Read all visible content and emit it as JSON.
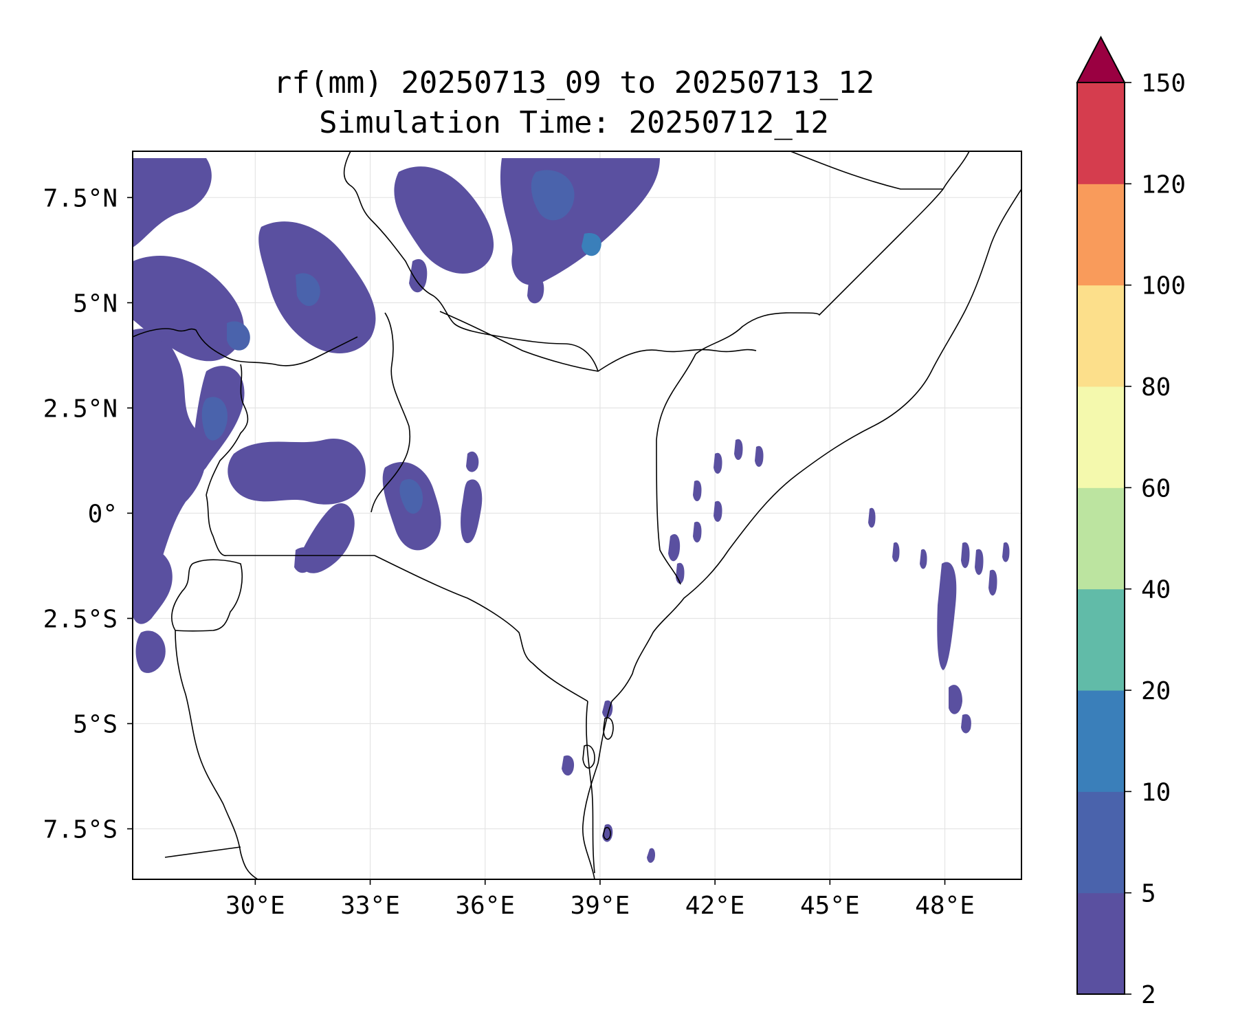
{
  "title": {
    "line1": "rf(mm) 20250713_09 to 20250713_12",
    "line2": "Simulation Time: 20250712_12"
  },
  "map": {
    "lon_range": [
      26.8,
      50.0
    ],
    "lat_range": [
      -8.7,
      8.6
    ],
    "x_ticks": [
      {
        "lon": 30,
        "label": "30°E"
      },
      {
        "lon": 33,
        "label": "33°E"
      },
      {
        "lon": 36,
        "label": "36°E"
      },
      {
        "lon": 39,
        "label": "39°E"
      },
      {
        "lon": 42,
        "label": "42°E"
      },
      {
        "lon": 45,
        "label": "45°E"
      },
      {
        "lon": 48,
        "label": "48°E"
      }
    ],
    "y_ticks": [
      {
        "lat": 7.5,
        "label": "7.5°N"
      },
      {
        "lat": 5,
        "label": "5°N"
      },
      {
        "lat": 2.5,
        "label": "2.5°N"
      },
      {
        "lat": 0,
        "label": "0°"
      },
      {
        "lat": -2.5,
        "label": "2.5°S"
      },
      {
        "lat": -5,
        "label": "5°S"
      },
      {
        "lat": -7.5,
        "label": "7.5°S"
      }
    ],
    "grid": true
  },
  "colorbar": {
    "levels": [
      "2",
      "5",
      "10",
      "20",
      "40",
      "60",
      "80",
      "100",
      "120",
      "150"
    ],
    "colors": [
      "#5a50a0",
      "#4a63ac",
      "#3a7fba",
      "#61bba8",
      "#bce4a0",
      "#f4f9ad",
      "#fcdf8b",
      "#f99b5b",
      "#d53d4e"
    ],
    "extend_color": "#9a0041"
  },
  "colors": {
    "rain_low": "#5a50a0",
    "rain_mid": "#4a63ac",
    "rain_high": "#3a7fba",
    "rain_peak": "#61bba8"
  }
}
